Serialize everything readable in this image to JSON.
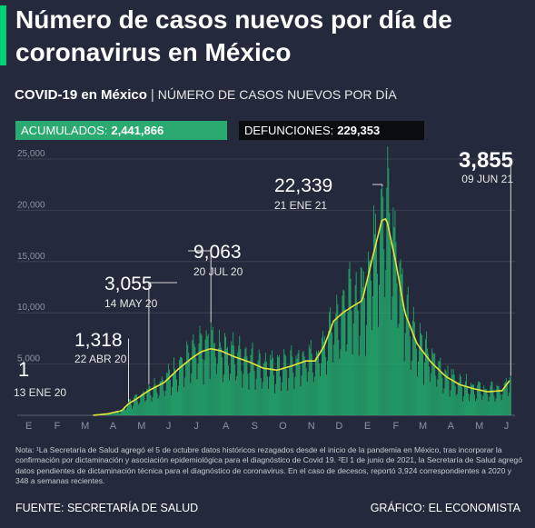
{
  "title": "Número de casos nuevos por día de coronavirus en México",
  "subtitle": {
    "main": "COVID-19 en México",
    "separator": "|",
    "description": "NÚMERO DE CASOS NUEVOS POR DÍA"
  },
  "stats": {
    "acumulados_label": "ACUMULADOS:",
    "acumulados_value": "2,441,866",
    "defunciones_label": "DEFUNCIONES:",
    "defunciones_value": "229,353"
  },
  "colors": {
    "background": "#242a3b",
    "accent": "#00d27a",
    "bars": "#22b06e",
    "trend_line": "#e4e43a",
    "gridline": "#3b4152",
    "tick_text": "#8d92a0"
  },
  "chart_data": {
    "type": "bar",
    "ylim": [
      0,
      25000
    ],
    "yticks": [
      5000,
      10000,
      15000,
      20000,
      25000
    ],
    "ytick_labels": [
      "5,000",
      "10,000",
      "15,000",
      "20,000",
      "25,000"
    ],
    "grid": true,
    "months": [
      "E",
      "F",
      "M",
      "A",
      "M",
      "J",
      "J",
      "A",
      "S",
      "O",
      "N",
      "D",
      "E",
      "F",
      "M",
      "A",
      "M",
      "J"
    ],
    "month_start_days": [
      0,
      31,
      60,
      91,
      121,
      152,
      182,
      213,
      244,
      274,
      305,
      335,
      366,
      397,
      425,
      456,
      486,
      517
    ],
    "date_range": {
      "start": "2020-01-13",
      "end": "2021-06-09"
    },
    "trend_series": {
      "name": "",
      "points": [
        [
          "2020-03-15",
          0
        ],
        [
          "2020-03-31",
          150
        ],
        [
          "2020-04-15",
          450
        ],
        [
          "2020-04-22",
          1100
        ],
        [
          "2020-05-01",
          1600
        ],
        [
          "2020-05-14",
          2400
        ],
        [
          "2020-05-31",
          3200
        ],
        [
          "2020-06-15",
          4500
        ],
        [
          "2020-06-30",
          5600
        ],
        [
          "2020-07-10",
          6200
        ],
        [
          "2020-07-20",
          6500
        ],
        [
          "2020-07-31",
          6300
        ],
        [
          "2020-08-15",
          5700
        ],
        [
          "2020-08-31",
          5200
        ],
        [
          "2020-09-15",
          4600
        ],
        [
          "2020-09-30",
          4400
        ],
        [
          "2020-10-15",
          4800
        ],
        [
          "2020-10-31",
          5300
        ],
        [
          "2020-11-10",
          5300
        ],
        [
          "2020-11-20",
          6800
        ],
        [
          "2020-11-30",
          9200
        ],
        [
          "2020-12-10",
          10000
        ],
        [
          "2020-12-20",
          10600
        ],
        [
          "2020-12-31",
          11200
        ],
        [
          "2021-01-10",
          15000
        ],
        [
          "2021-01-21",
          19000
        ],
        [
          "2021-01-26",
          19200
        ],
        [
          "2021-02-05",
          15000
        ],
        [
          "2021-02-15",
          10000
        ],
        [
          "2021-02-28",
          7000
        ],
        [
          "2021-03-15",
          5200
        ],
        [
          "2021-03-31",
          3800
        ],
        [
          "2021-04-15",
          3000
        ],
        [
          "2021-04-30",
          2600
        ],
        [
          "2021-05-15",
          2300
        ],
        [
          "2021-05-31",
          2400
        ],
        [
          "2021-06-09",
          3500
        ]
      ]
    },
    "annotations": [
      {
        "date": "2020-01-13",
        "value": 1,
        "value_label": "1",
        "date_label": "13 ENE 20"
      },
      {
        "date": "2020-04-22",
        "value": 1318,
        "value_label": "1,318",
        "date_label": "22 ABR 20"
      },
      {
        "date": "2020-05-14",
        "value": 3055,
        "value_label": "3,055",
        "date_label": "14 MAY 20"
      },
      {
        "date": "2020-07-20",
        "value": 9063,
        "value_label": "9,063",
        "date_label": "20 JUL 20"
      },
      {
        "date": "2021-01-21",
        "value": 22339,
        "value_label": "22,339",
        "date_label": "21 ENE 21"
      },
      {
        "date": "2021-06-09",
        "value": 3855,
        "value_label": "3,855",
        "date_label": "09 JUN 21"
      }
    ]
  },
  "notes": "Nota: ¹La Secretaría de Salud agregó el 5 de octubre datos históricos rezagados desde el inicio de la pandemia en México, tras incorporar la confirmación por dictaminación y asociación epidemiológica para el diagnóstico de Covid 19. ²El 1 de junio de 2021, la Secretaría de Salud agregó datos pendientes de dictaminación técnica para el diagnóstico de coronavirus. En el caso de decesos, reportó 3,924 correspondientes a 2020 y 348 a semanas recientes.",
  "footer": {
    "source": "FUENTE: SECRETARÍA DE SALUD",
    "credit": "GRÁFICO: EL ECONOMISTA"
  }
}
